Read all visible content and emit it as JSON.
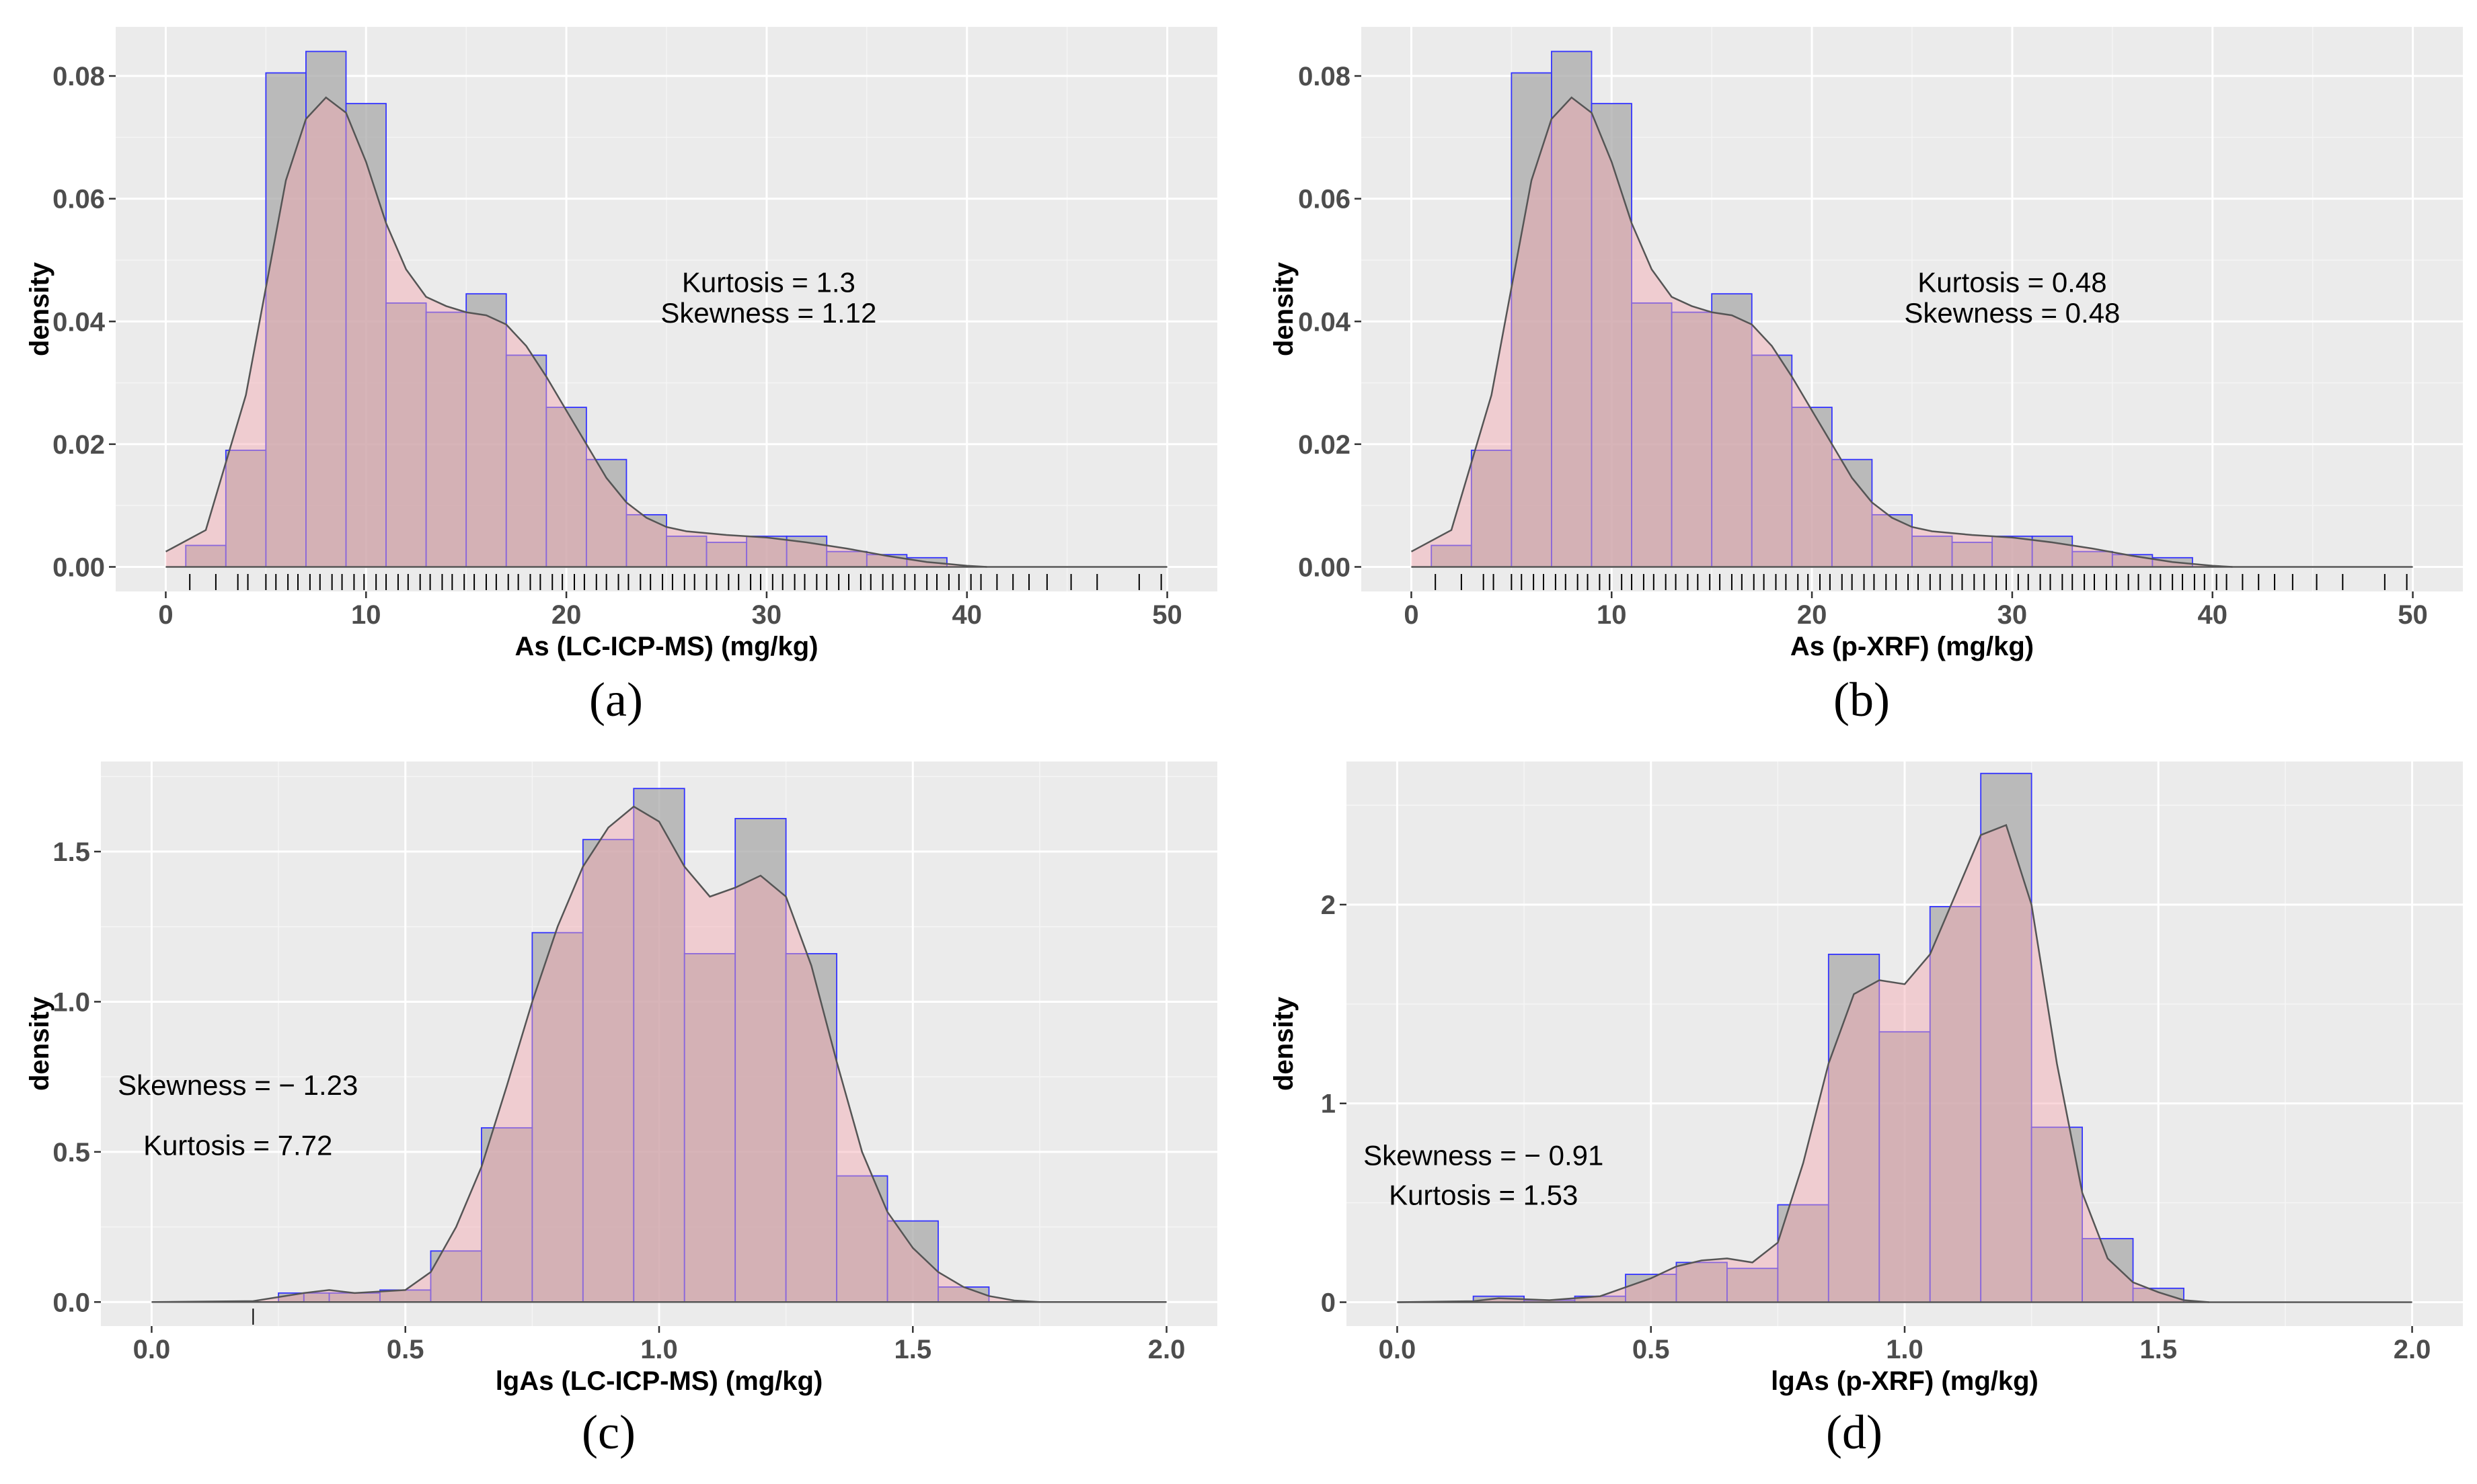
{
  "chart_data": [
    {
      "type": "histogram",
      "caption": "(a)",
      "xlabel": "As (LC-ICP-MS) (mg/kg)",
      "ylabel": "density",
      "xlim": [
        -2.5,
        52.5
      ],
      "ylim": [
        -0.004,
        0.088
      ],
      "xticks": [
        0,
        10,
        20,
        30,
        40,
        50
      ],
      "xtick_labels": [
        "0",
        "10",
        "20",
        "30",
        "40",
        "50"
      ],
      "yticks": [
        0,
        0.02,
        0.04,
        0.06,
        0.08
      ],
      "ytick_labels": [
        "0.00",
        "0.02",
        "0.04",
        "0.06",
        "0.08"
      ],
      "bin_edges": [
        1,
        3,
        5,
        7,
        9,
        11,
        13,
        15,
        17,
        19,
        21,
        23,
        25,
        27,
        29,
        31,
        33,
        35,
        37,
        39
      ],
      "values": [
        0.0035,
        0.019,
        0.0805,
        0.084,
        0.0755,
        0.043,
        0.0415,
        0.0445,
        0.0345,
        0.026,
        0.0175,
        0.0085,
        0.005,
        0.004,
        0.005,
        0.005,
        0.0025,
        0.002,
        0.0015
      ],
      "density": {
        "x": [
          0,
          2,
          4,
          6,
          7,
          8,
          9,
          10,
          11,
          12,
          13,
          14,
          15,
          16,
          17,
          18,
          19,
          20,
          21,
          22,
          23,
          24,
          25,
          26,
          28,
          30,
          32,
          34,
          36,
          38,
          40,
          41
        ],
        "y": [
          0.0025,
          0.006,
          0.028,
          0.063,
          0.073,
          0.0765,
          0.074,
          0.066,
          0.056,
          0.0485,
          0.044,
          0.0425,
          0.0415,
          0.041,
          0.0395,
          0.036,
          0.031,
          0.0255,
          0.02,
          0.0145,
          0.0105,
          0.008,
          0.0065,
          0.0058,
          0.0052,
          0.0048,
          0.004,
          0.003,
          0.0018,
          0.0008,
          0.0002,
          0
        ]
      },
      "rug": [
        1.2,
        2.5,
        3.6,
        4.1,
        5.0,
        5.5,
        6.1,
        6.6,
        7.2,
        7.7,
        8.3,
        8.8,
        9.4,
        9.9,
        10.5,
        11.0,
        11.6,
        12.1,
        12.7,
        13.2,
        13.8,
        14.3,
        14.9,
        15.4,
        16.0,
        16.5,
        17.1,
        17.6,
        18.2,
        18.7,
        19.3,
        19.8,
        20.4,
        20.9,
        21.5,
        22.0,
        22.6,
        23.1,
        23.7,
        24.2,
        24.8,
        25.3,
        25.9,
        26.4,
        27.0,
        27.5,
        28.1,
        28.6,
        29.2,
        29.7,
        30.3,
        30.8,
        31.4,
        31.9,
        32.5,
        33.0,
        33.6,
        34.1,
        34.7,
        35.2,
        35.8,
        36.3,
        36.9,
        37.4,
        38.0,
        38.5,
        39.1,
        39.6,
        40.2,
        40.7,
        41.5,
        42.3,
        43.1,
        44.0,
        45.2,
        46.5,
        48.6,
        49.7
      ],
      "annotations": [
        {
          "text": "Kurtosis = 1.3",
          "x": 30.1,
          "y": 0.0448
        },
        {
          "text": "Skewness = 1.12",
          "x": 30.1,
          "y": 0.0398
        }
      ]
    },
    {
      "type": "histogram",
      "caption": "(b)",
      "xlabel": "As (p-XRF) (mg/kg)",
      "ylabel": "density",
      "xlim": [
        -2.5,
        52.5
      ],
      "ylim": [
        -0.004,
        0.088
      ],
      "xticks": [
        0,
        10,
        20,
        30,
        40,
        50
      ],
      "xtick_labels": [
        "0",
        "10",
        "20",
        "30",
        "40",
        "50"
      ],
      "yticks": [
        0,
        0.02,
        0.04,
        0.06,
        0.08
      ],
      "ytick_labels": [
        "0.00",
        "0.02",
        "0.04",
        "0.06",
        "0.08"
      ],
      "bin_edges": [
        1,
        3,
        5,
        7,
        9,
        11,
        13,
        15,
        17,
        19,
        21,
        23,
        25,
        27,
        29,
        31,
        33,
        35,
        37,
        39
      ],
      "values": [
        0.0035,
        0.019,
        0.0805,
        0.084,
        0.0755,
        0.043,
        0.0415,
        0.0445,
        0.0345,
        0.026,
        0.0175,
        0.0085,
        0.005,
        0.004,
        0.005,
        0.005,
        0.0025,
        0.002,
        0.0015
      ],
      "density": {
        "x": [
          0,
          2,
          4,
          6,
          7,
          8,
          9,
          10,
          11,
          12,
          13,
          14,
          15,
          16,
          17,
          18,
          19,
          20,
          21,
          22,
          23,
          24,
          25,
          26,
          28,
          30,
          32,
          34,
          36,
          38,
          40,
          41
        ],
        "y": [
          0.0025,
          0.006,
          0.028,
          0.063,
          0.073,
          0.0765,
          0.074,
          0.066,
          0.056,
          0.0485,
          0.044,
          0.0425,
          0.0415,
          0.041,
          0.0395,
          0.036,
          0.031,
          0.0255,
          0.02,
          0.0145,
          0.0105,
          0.008,
          0.0065,
          0.0058,
          0.0052,
          0.0048,
          0.004,
          0.003,
          0.0018,
          0.0008,
          0.0002,
          0
        ]
      },
      "rug": [
        1.2,
        2.5,
        3.6,
        4.1,
        5.0,
        5.5,
        6.1,
        6.6,
        7.2,
        7.7,
        8.3,
        8.8,
        9.4,
        9.9,
        10.5,
        11.0,
        11.6,
        12.1,
        12.7,
        13.2,
        13.8,
        14.3,
        14.9,
        15.4,
        16.0,
        16.5,
        17.1,
        17.6,
        18.2,
        18.7,
        19.3,
        19.8,
        20.4,
        20.9,
        21.5,
        22.0,
        22.6,
        23.1,
        23.7,
        24.2,
        24.8,
        25.3,
        25.9,
        26.4,
        27.0,
        27.5,
        28.1,
        28.6,
        29.2,
        29.7,
        30.3,
        30.8,
        31.4,
        31.9,
        32.5,
        33.0,
        33.6,
        34.1,
        34.7,
        35.2,
        35.8,
        36.3,
        36.9,
        37.4,
        38.0,
        38.5,
        39.1,
        39.6,
        40.2,
        40.7,
        41.5,
        42.3,
        43.1,
        44.0,
        45.2,
        46.5,
        48.6,
        49.7
      ],
      "annotations": [
        {
          "text": "Kurtosis = 0.48",
          "x": 30.0,
          "y": 0.0448
        },
        {
          "text": "Skewness = 0.48",
          "x": 30.0,
          "y": 0.0398
        }
      ]
    },
    {
      "type": "histogram",
      "caption": "(c)",
      "xlabel": "lgAs (LC-ICP-MS) (mg/kg)",
      "ylabel": "density",
      "xlim": [
        -0.1,
        2.1
      ],
      "ylim": [
        -0.08,
        1.8
      ],
      "xticks": [
        0,
        0.5,
        1.0,
        1.5,
        2.0
      ],
      "xtick_labels": [
        "0.0",
        "0.5",
        "1.0",
        "1.5",
        "2.0"
      ],
      "yticks": [
        0,
        0.5,
        1.0,
        1.5
      ],
      "ytick_labels": [
        "0.0",
        "0.5",
        "1.0",
        "1.5"
      ],
      "bin_edges": [
        0.25,
        0.3,
        0.35,
        0.45,
        0.55,
        0.65,
        0.75,
        0.85,
        0.95,
        1.05,
        1.15,
        1.25,
        1.35,
        1.45,
        1.55,
        1.65
      ],
      "values": [
        0.03,
        0.03,
        0.03,
        0.04,
        0.17,
        0.58,
        1.23,
        1.54,
        1.71,
        1.16,
        1.61,
        1.16,
        0.42,
        0.27,
        0.05
      ],
      "density": {
        "x": [
          0.0,
          0.2,
          0.3,
          0.35,
          0.4,
          0.5,
          0.55,
          0.6,
          0.65,
          0.7,
          0.75,
          0.8,
          0.85,
          0.9,
          0.95,
          1.0,
          1.05,
          1.1,
          1.15,
          1.2,
          1.25,
          1.3,
          1.35,
          1.4,
          1.45,
          1.5,
          1.55,
          1.6,
          1.65,
          1.7,
          1.75
        ],
        "y": [
          0,
          0.003,
          0.03,
          0.04,
          0.03,
          0.04,
          0.1,
          0.25,
          0.45,
          0.72,
          1.0,
          1.25,
          1.45,
          1.58,
          1.65,
          1.6,
          1.45,
          1.35,
          1.38,
          1.42,
          1.35,
          1.12,
          0.8,
          0.5,
          0.3,
          0.18,
          0.1,
          0.05,
          0.02,
          0.005,
          0
        ]
      },
      "rug": [
        0.2
      ],
      "annotations": [
        {
          "text": "Skewness = − 1.23",
          "x": 0.17,
          "y": 0.69
        },
        {
          "text": "Kurtosis = 7.72",
          "x": 0.17,
          "y": 0.49
        }
      ]
    },
    {
      "type": "histogram",
      "caption": "(d)",
      "xlabel": "lgAs (p-XRF) (mg/kg)",
      "ylabel": "density",
      "xlim": [
        -0.1,
        2.1
      ],
      "ylim": [
        -0.12,
        2.72
      ],
      "xticks": [
        0,
        0.5,
        1.0,
        1.5,
        2.0
      ],
      "xtick_labels": [
        "0.0",
        "0.5",
        "1.0",
        "1.5",
        "2.0"
      ],
      "yticks": [
        0,
        1,
        2
      ],
      "ytick_labels": [
        "0",
        "1",
        "2"
      ],
      "bin_edges": [
        0.15,
        0.25,
        0.35,
        0.45,
        0.55,
        0.65,
        0.75,
        0.85,
        0.95,
        1.05,
        1.15,
        1.25,
        1.35,
        1.45,
        1.55
      ],
      "values": [
        0.03,
        0.01,
        0.03,
        0.14,
        0.2,
        0.17,
        0.49,
        1.75,
        1.36,
        1.99,
        2.66,
        0.88,
        0.32,
        0.07
      ],
      "density": {
        "x": [
          0.0,
          0.15,
          0.2,
          0.3,
          0.4,
          0.5,
          0.55,
          0.6,
          0.65,
          0.7,
          0.75,
          0.8,
          0.85,
          0.9,
          0.95,
          1.0,
          1.05,
          1.1,
          1.15,
          1.2,
          1.25,
          1.3,
          1.35,
          1.4,
          1.45,
          1.5,
          1.55,
          1.6
        ],
        "y": [
          0,
          0.005,
          0.02,
          0.01,
          0.03,
          0.12,
          0.18,
          0.21,
          0.22,
          0.2,
          0.3,
          0.7,
          1.2,
          1.55,
          1.62,
          1.6,
          1.75,
          2.05,
          2.35,
          2.4,
          2.0,
          1.2,
          0.55,
          0.22,
          0.1,
          0.05,
          0.01,
          0
        ]
      },
      "rug": [],
      "annotations": [
        {
          "text": "Skewness = − 0.91",
          "x": 0.17,
          "y": 0.69
        },
        {
          "text": "Kurtosis = 1.53",
          "x": 0.17,
          "y": 0.49
        }
      ]
    }
  ]
}
